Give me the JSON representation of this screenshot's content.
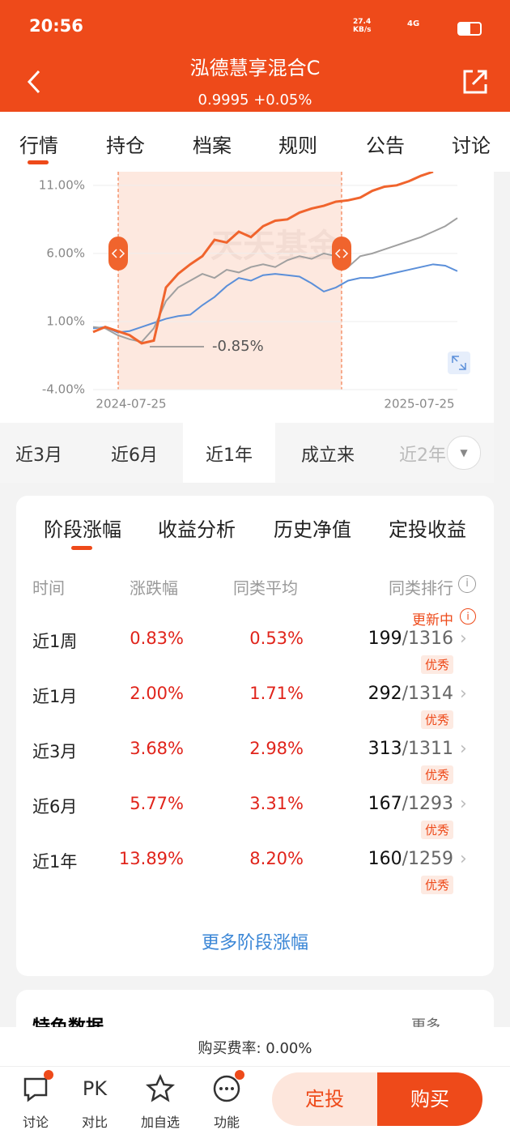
{
  "status_bar": {
    "time": "20:56",
    "speed": "27.4 KB/s",
    "network": "4G"
  },
  "header": {
    "title": "泓德慧享混合C",
    "subtitle": "0.9995 +0.05%"
  },
  "tabs": [
    "行情",
    "持仓",
    "档案",
    "规则",
    "公告",
    "讨论"
  ],
  "chart": {
    "type": "line",
    "watermark": "天天基金",
    "ylim": [
      -4,
      12
    ],
    "xlim": [
      0,
      30
    ],
    "yticks": [
      {
        "value": 11,
        "label": "11.00%"
      },
      {
        "value": 6,
        "label": "6.00%"
      },
      {
        "value": 1,
        "label": "1.00%"
      },
      {
        "value": -4,
        "label": "-4.00%"
      }
    ],
    "x_labels": [
      "2024-07-25",
      "2025-07-25"
    ],
    "annotation": {
      "value": -0.85,
      "label": "-0.85%"
    },
    "series": [
      {
        "color": "#5b8fd9",
        "values": [
          0.5,
          0.6,
          0.2,
          0.3,
          0.6,
          0.9,
          1.2,
          1.4,
          1.5,
          2.2,
          2.8,
          3.6,
          4.2,
          4.0,
          4.4,
          4.5,
          4.4,
          4.3,
          3.8,
          3.2,
          3.5,
          4.0,
          4.2,
          4.2,
          4.4,
          4.6,
          4.8,
          5.0,
          5.2,
          5.1,
          4.7
        ]
      },
      {
        "color": "#a0a0a0",
        "values": [
          0.6,
          0.5,
          0.0,
          -0.3,
          -0.5,
          0.5,
          2.5,
          3.5,
          4.0,
          4.5,
          4.2,
          4.8,
          4.6,
          5.0,
          5.2,
          5.0,
          5.5,
          5.8,
          5.6,
          6.0,
          5.8,
          5.0,
          5.8,
          6.0,
          6.3,
          6.6,
          6.9,
          7.2,
          7.6,
          8.0,
          8.6
        ]
      },
      {
        "color": "#f0642d",
        "values": [
          0.23,
          0.6,
          0.3,
          0.0,
          -0.6,
          -0.4,
          3.5,
          4.5,
          5.2,
          5.8,
          7.0,
          6.8,
          7.6,
          7.2,
          8.0,
          8.4,
          8.5,
          9.0,
          9.3,
          9.5,
          9.8,
          9.9,
          10.1,
          10.6,
          10.9,
          11.0,
          11.3,
          11.7,
          12.0,
          null,
          null
        ]
      }
    ]
  },
  "periods": [
    "近3月",
    "近6月",
    "近1年",
    "成立来",
    "近2年"
  ],
  "card": {
    "tabs": [
      "阶段涨幅",
      "收益分析",
      "历史净值",
      "定投收益"
    ],
    "columns": [
      "时间",
      "涨跌幅",
      "同类平均",
      "同类排行"
    ],
    "updating": "更新中",
    "rows": [
      [
        "近1周",
        "0.83%",
        "0.53%",
        "199",
        "/1316",
        "优秀"
      ],
      [
        "近1月",
        "2.00%",
        "1.71%",
        "292",
        "/1314",
        "优秀"
      ],
      [
        "近3月",
        "3.68%",
        "2.98%",
        "313",
        "/1311",
        "优秀"
      ],
      [
        "近6月",
        "5.77%",
        "3.31%",
        "167",
        "/1293",
        "优秀"
      ],
      [
        "近1年",
        "13.89%",
        "8.20%",
        "160",
        "/1259",
        "优秀"
      ]
    ],
    "more": "更多阶段涨幅"
  },
  "card2": {
    "title": "特色数据",
    "more": "更多"
  },
  "footer": {
    "fee": "购买费率: 0.00%",
    "nav": [
      {
        "icon": "",
        "label": "讨论"
      },
      {
        "icon": "PK",
        "label": "对比"
      },
      {
        "icon": "",
        "label": "加自选"
      },
      {
        "icon": "",
        "label": "功能"
      }
    ],
    "buttons": [
      "定投",
      "购买"
    ]
  }
}
